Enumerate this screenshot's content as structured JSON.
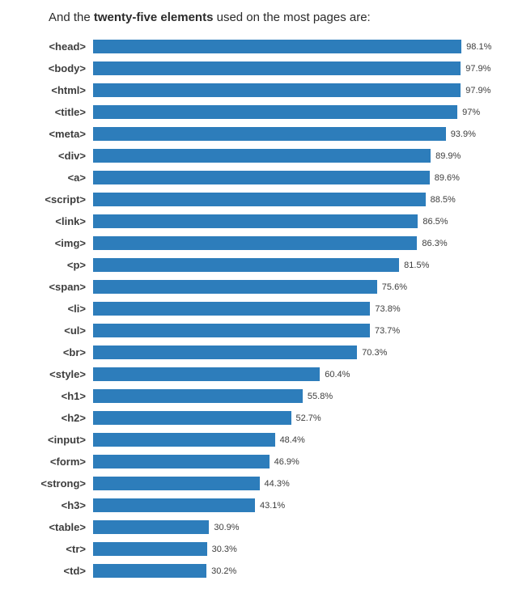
{
  "title": {
    "prefix": "And the ",
    "bold": "twenty-five elements",
    "suffix": " used on the most pages are:"
  },
  "chart_data": {
    "type": "bar",
    "orientation": "horizontal",
    "title": "And the twenty-five elements used on the most pages are:",
    "xlabel": "",
    "ylabel": "",
    "xlim": [
      0,
      100
    ],
    "grid": false,
    "legend": false,
    "bar_color": "#2d7dbb",
    "categories": [
      "<head>",
      "<body>",
      "<html>",
      "<title>",
      "<meta>",
      "<div>",
      "<a>",
      "<script>",
      "<link>",
      "<img>",
      "<p>",
      "<span>",
      "<li>",
      "<ul>",
      "<br>",
      "<style>",
      "<h1>",
      "<h2>",
      "<input>",
      "<form>",
      "<strong>",
      "<h3>",
      "<table>",
      "<tr>",
      "<td>"
    ],
    "values": [
      98.1,
      97.9,
      97.9,
      97,
      93.9,
      89.9,
      89.6,
      88.5,
      86.5,
      86.3,
      81.5,
      75.6,
      73.8,
      73.7,
      70.3,
      60.4,
      55.8,
      52.7,
      48.4,
      46.9,
      44.3,
      43.1,
      30.9,
      30.3,
      30.2
    ],
    "value_labels": [
      "98.1%",
      "97.9%",
      "97.9%",
      "97%",
      "93.9%",
      "89.9%",
      "89.6%",
      "88.5%",
      "86.5%",
      "86.3%",
      "81.5%",
      "75.6%",
      "73.8%",
      "73.7%",
      "70.3%",
      "60.4%",
      "55.8%",
      "52.7%",
      "48.4%",
      "46.9%",
      "44.3%",
      "43.1%",
      "30.9%",
      "30.3%",
      "30.2%"
    ]
  }
}
